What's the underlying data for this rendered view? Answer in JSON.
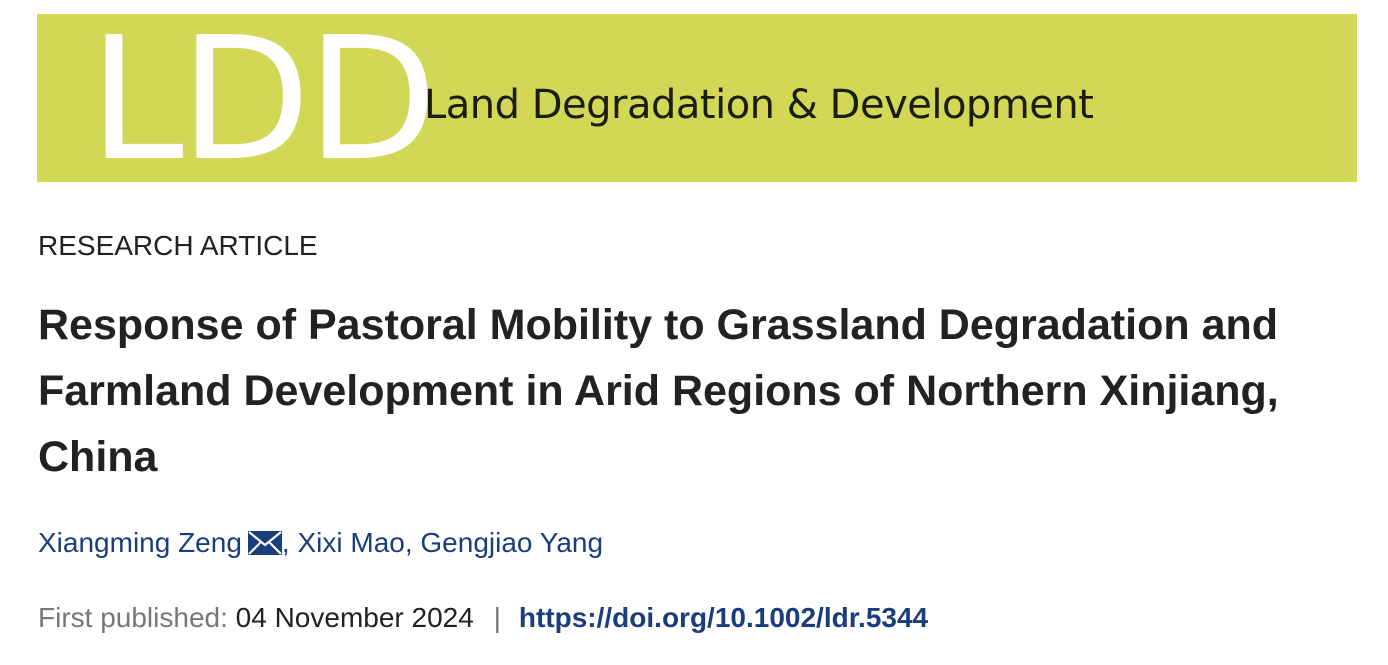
{
  "banner": {
    "logo_letters": "LDD",
    "journal_name": "Land Degradation & Development",
    "background_color": "#d2d755"
  },
  "article": {
    "type": "RESEARCH ARTICLE",
    "title": "Response of Pastoral Mobility to Grassland Degradation and Farmland Development in Arid Regions of Northern Xinjiang, China",
    "authors": [
      {
        "name": "Xiangming Zeng",
        "icon": "envelope-icon"
      },
      {
        "name": "Xixi Mao"
      },
      {
        "name": "Gengjiao Yang"
      }
    ],
    "published_label": "First published:",
    "published_date": "04 November 2024",
    "separator": "|",
    "doi": "https://doi.org/10.1002/ldr.5344"
  }
}
